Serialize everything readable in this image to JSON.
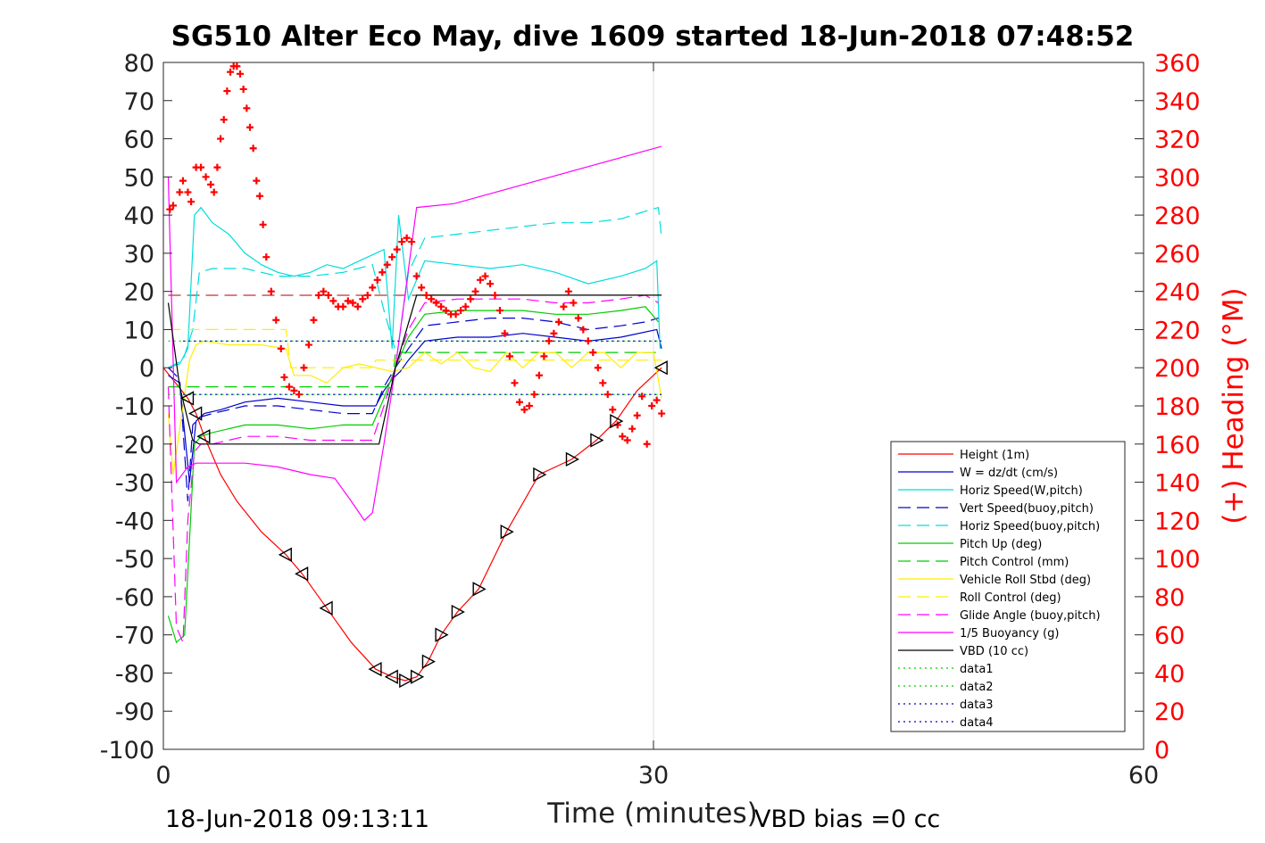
{
  "title": "SG510 Alter Eco May, dive 1609 started 18-Jun-2018 07:48:52",
  "footer": {
    "timestamp": "18-Jun-2018 09:13:11",
    "vbd_bias": "VBD bias =0 cc"
  },
  "chart_data": {
    "type": "line",
    "xlabel": "Time (minutes)",
    "ylabel_right": "(+) Heading (°M)",
    "xlim": [
      0,
      60
    ],
    "ylim": [
      -100,
      80
    ],
    "ylim_right": [
      0,
      360
    ],
    "xticks": [
      0,
      30,
      60
    ],
    "yticks": [
      80,
      70,
      60,
      50,
      40,
      30,
      20,
      10,
      0,
      -10,
      -20,
      -30,
      -40,
      -50,
      -60,
      -70,
      -80,
      -90,
      -100
    ],
    "yticks_right": [
      360,
      340,
      320,
      300,
      280,
      260,
      240,
      220,
      200,
      180,
      160,
      140,
      120,
      100,
      80,
      60,
      40,
      20,
      0
    ],
    "grid": "x only",
    "legend_position": "bottom-right",
    "series": [
      {
        "name": "Height (1m)",
        "color": "#ff0000",
        "style": "solid",
        "x": [
          0.0,
          1.5,
          2.0,
          2.5,
          3.5,
          4.5,
          6,
          7.5,
          8.5,
          10,
          11.5,
          13,
          14,
          14.8,
          15.5,
          16.2,
          17,
          18,
          19.3,
          21,
          23,
          25,
          26.5,
          27.7,
          29,
          30.5
        ],
        "y": [
          0,
          -8,
          -12,
          -18,
          -28,
          -35,
          -43,
          -49,
          -54,
          -63,
          -72,
          -79,
          -81,
          -82,
          -81,
          -77,
          -70,
          -64,
          -58,
          -43,
          -28,
          -24,
          -19,
          -14,
          -6,
          0
        ]
      },
      {
        "name": "W = dz/dt (cm/s)",
        "color": "#0000cc",
        "style": "solid",
        "x": [
          0.3,
          1.0,
          1.6,
          2.0,
          2.5,
          3.5,
          5,
          7,
          9,
          11,
          13,
          13.5,
          14,
          14.5,
          15,
          16,
          18,
          20,
          22,
          24,
          26,
          28,
          30.2,
          30.5
        ],
        "y": [
          -2,
          -4,
          -30,
          -14,
          -12,
          -11,
          -9,
          -8,
          -9,
          -10,
          -10,
          -6,
          -3,
          -1,
          2,
          7,
          8,
          8,
          9,
          8,
          7,
          8,
          10,
          5
        ]
      },
      {
        "name": "Horiz Speed(W,pitch)",
        "color": "#00dddd",
        "style": "solid",
        "x": [
          0.3,
          1.0,
          1.5,
          1.9,
          2.3,
          3,
          4,
          5,
          6,
          7,
          8,
          9,
          10,
          11,
          12,
          13,
          13.5,
          14,
          14.4,
          15,
          16,
          18,
          20,
          22,
          24,
          26,
          28,
          29.5,
          30.2,
          30.4
        ],
        "y": [
          0,
          1,
          5,
          40,
          42,
          38,
          35,
          30,
          27,
          25,
          24,
          25,
          27,
          26,
          28,
          30,
          31,
          5,
          40,
          18,
          28,
          27,
          26,
          27,
          25,
          22,
          24,
          26,
          28,
          5
        ]
      },
      {
        "name": "Vert Speed(buoy,pitch)",
        "color": "#0000cc",
        "style": "dashed",
        "x": [
          0.3,
          1.0,
          1.5,
          1.8,
          2.2,
          3,
          5,
          7,
          9,
          11,
          12.8,
          13.5,
          14.2,
          15,
          16,
          18,
          20,
          22,
          24,
          26,
          28,
          29.5,
          30.3
        ],
        "y": [
          0,
          -3,
          -35,
          -15,
          -13,
          -12,
          -10,
          -10,
          -11,
          -12,
          -12,
          -5,
          0,
          5,
          11,
          12,
          13,
          13,
          12,
          10,
          11,
          12,
          13
        ]
      },
      {
        "name": "Horiz Speed(buoy,pitch)",
        "color": "#00dddd",
        "style": "dashed",
        "x": [
          0.3,
          1.2,
          1.8,
          2.2,
          3,
          5,
          7,
          9,
          11,
          12.8,
          13.5,
          14.3,
          15,
          16,
          18,
          20,
          22,
          24,
          26,
          28,
          29.5,
          30.3,
          30.5
        ],
        "y": [
          0,
          2,
          10,
          25,
          26,
          26,
          24,
          24,
          25,
          27,
          15,
          3,
          25,
          34,
          35,
          36,
          37,
          38,
          38,
          39,
          41,
          42,
          34
        ]
      },
      {
        "name": "Pitch Up (deg)",
        "color": "#00cc00",
        "style": "solid",
        "x": [
          0.3,
          0.8,
          1.3,
          1.6,
          1.9,
          2.3,
          3,
          5,
          7,
          9,
          11,
          12.8,
          13.5,
          14.2,
          15,
          16,
          18,
          20,
          22,
          24,
          26,
          28,
          29.5,
          30.3
        ],
        "y": [
          -65,
          -72,
          -70,
          -45,
          -20,
          -18,
          -17,
          -15,
          -15,
          -16,
          -15,
          -15,
          -8,
          0,
          8,
          14,
          15,
          15,
          15,
          14,
          14,
          15,
          16,
          12
        ]
      },
      {
        "name": "Pitch Control (mm)",
        "color": "#00cc00",
        "style": "dashed",
        "x": [
          0.3,
          14.0,
          14.2,
          30.5
        ],
        "y": [
          -5,
          -5,
          4,
          4
        ]
      },
      {
        "name": "Vehicle Roll Stbd (deg)",
        "color": "#ffee00",
        "style": "solid",
        "x": [
          0.3,
          0.6,
          1.2,
          1.6,
          2.0,
          2.5,
          4,
          6,
          7.5,
          8,
          9,
          10,
          11,
          12,
          13,
          14,
          15,
          16,
          17,
          18,
          19,
          20,
          21,
          22,
          23,
          24,
          25,
          26,
          27,
          28,
          29,
          30,
          30.5
        ],
        "y": [
          -12,
          -28,
          -10,
          2,
          6,
          7,
          6,
          6,
          5,
          -2,
          -2,
          -4,
          0,
          1,
          0,
          -1,
          0,
          4,
          1,
          4,
          0,
          -1,
          4,
          0,
          4,
          4,
          0,
          4,
          4,
          0,
          4,
          4,
          -8
        ]
      },
      {
        "name": "Roll Control (deg)",
        "color": "#ffee00",
        "style": "dashed",
        "x": [
          0.3,
          7.5,
          7.8,
          12.8,
          13.0,
          30.5
        ],
        "y": [
          10,
          10,
          0,
          0,
          2,
          2
        ]
      },
      {
        "name": "Glide Angle (buoy,pitch)",
        "color": "#ff00ff",
        "style": "dashed",
        "x": [
          0.3,
          0.8,
          1.2,
          1.5,
          1.9,
          2.3,
          3,
          5,
          7,
          9,
          11,
          12.8,
          13.5,
          14.2,
          15,
          16,
          18,
          20,
          22,
          24,
          26,
          28,
          29.5,
          30.3
        ],
        "y": [
          -5,
          -68,
          -72,
          -40,
          -22,
          -20,
          -20,
          -18,
          -18,
          -19,
          -19,
          -19,
          -10,
          0,
          10,
          17,
          18,
          18,
          18,
          17,
          17,
          18,
          19,
          17
        ]
      },
      {
        "name": "1/5 Buoyancy (g)",
        "color": "#ff00ff",
        "style": "solid",
        "x": [
          0.3,
          0.8,
          1.5,
          2.0,
          3,
          5,
          7,
          9,
          10.5,
          11.5,
          12.3,
          12.8,
          13.5,
          14.2,
          15.5,
          17.8,
          30.5
        ],
        "y": [
          50,
          -30,
          -26,
          -25,
          -25,
          -25,
          -26,
          -28,
          -29,
          -35,
          -40,
          -38,
          -20,
          0,
          42,
          43,
          58
        ]
      },
      {
        "name": "VBD (10 cc)",
        "color": "#000000",
        "style": "solid",
        "x": [
          0.3,
          1.0,
          1.8,
          2.2,
          13.2,
          14.2,
          15.5,
          30.5
        ],
        "y": [
          17,
          -5,
          -19,
          -20,
          -20,
          0,
          19,
          19
        ]
      },
      {
        "name": "data1",
        "color": "#00cc00",
        "style": "dotted",
        "x": [
          0.3,
          30.5
        ],
        "y": [
          7,
          7
        ]
      },
      {
        "name": "data2",
        "color": "#00cc00",
        "style": "dotted",
        "x": [
          0.3,
          30.5
        ],
        "y": [
          -7,
          -7
        ]
      },
      {
        "name": "data3",
        "color": "#0000cc",
        "style": "dotted",
        "x": [
          1.2,
          30.5
        ],
        "y": [
          7,
          7
        ]
      },
      {
        "name": "data4",
        "color": "#0000cc",
        "style": "dotted",
        "x": [
          1.2,
          30.5
        ],
        "y": [
          -7,
          -7
        ]
      }
    ],
    "reference_line": {
      "color": "#aa0000",
      "style": "dashed",
      "y": 19,
      "x": [
        0.3,
        30.5
      ]
    },
    "heading_series": {
      "name": "(+) Heading (°M)",
      "color": "#ff0000",
      "marker": "+",
      "x": [
        0.4,
        0.6,
        1.0,
        1.2,
        1.5,
        1.7,
        2.0,
        2.3,
        2.6,
        2.9,
        3.1,
        3.3,
        3.5,
        3.7,
        3.9,
        4.1,
        4.3,
        4.5,
        4.7,
        4.9,
        5.1,
        5.3,
        5.5,
        5.7,
        5.9,
        6.1,
        6.3,
        6.6,
        6.9,
        7.2,
        7.4,
        7.7,
        8.0,
        8.3,
        8.6,
        8.9,
        9.2,
        9.5,
        9.8,
        10.1,
        10.4,
        10.7,
        11.0,
        11.3,
        11.6,
        11.9,
        12.2,
        12.5,
        12.8,
        13.1,
        13.4,
        13.7,
        14.0,
        14.3,
        14.6,
        14.9,
        15.2,
        15.5,
        15.8,
        16.1,
        16.4,
        16.7,
        17.0,
        17.3,
        17.6,
        17.9,
        18.2,
        18.5,
        18.8,
        19.1,
        19.4,
        19.7,
        20.0,
        20.3,
        20.6,
        20.9,
        21.2,
        21.5,
        21.8,
        22.1,
        22.4,
        22.7,
        23.0,
        23.3,
        23.6,
        23.9,
        24.2,
        24.5,
        24.8,
        25.1,
        25.4,
        25.7,
        26.0,
        26.3,
        26.6,
        26.9,
        27.2,
        27.5,
        27.8,
        28.1,
        28.4,
        28.7,
        29.0,
        29.3,
        29.6,
        29.9,
        30.2,
        30.5
      ],
      "y": [
        283,
        285,
        292,
        298,
        292,
        287,
        305,
        305,
        300,
        296,
        292,
        305,
        320,
        330,
        345,
        355,
        358,
        358,
        354,
        346,
        336,
        326,
        315,
        298,
        290,
        275,
        258,
        240,
        225,
        210,
        195,
        190,
        188,
        186,
        200,
        212,
        225,
        238,
        240,
        238,
        235,
        232,
        232,
        235,
        234,
        232,
        236,
        238,
        242,
        246,
        250,
        254,
        258,
        262,
        266,
        268,
        266,
        248,
        242,
        238,
        236,
        234,
        232,
        230,
        228,
        228,
        230,
        232,
        236,
        240,
        246,
        248,
        244,
        238,
        230,
        218,
        206,
        192,
        182,
        178,
        180,
        186,
        196,
        206,
        214,
        218,
        224,
        232,
        240,
        234,
        226,
        220,
        214,
        208,
        200,
        192,
        186,
        178,
        170,
        164,
        162,
        168,
        175,
        185,
        160,
        180,
        183,
        176
      ]
    }
  }
}
